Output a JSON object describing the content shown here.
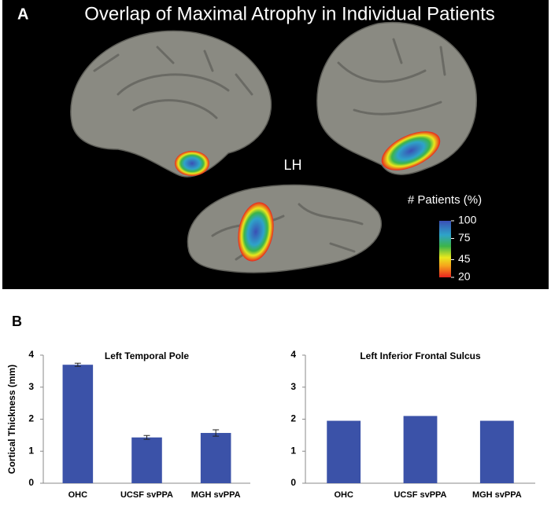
{
  "panel_a": {
    "label": "A",
    "title": "Overlap of Maximal Atrophy in Individual Patients",
    "hemisphere": "LH",
    "colorbar": {
      "title": "# Patients (%)",
      "range": [
        20,
        100
      ],
      "ticks": [
        100,
        75,
        45,
        20
      ]
    }
  },
  "panel_b_label": "B",
  "chart_data": [
    {
      "type": "bar",
      "title": "Left Temporal Pole",
      "ylabel": "Cortical Thickness (mm)",
      "categories": [
        "OHC",
        "UCSF svPPA",
        "MGH svPPA"
      ],
      "values": [
        3.7,
        1.43,
        1.57
      ],
      "errors": [
        0.05,
        0.06,
        0.1
      ],
      "color": "#3b52a8",
      "ylim": [
        0,
        4
      ],
      "yticks": [
        0,
        1,
        2,
        3,
        4
      ]
    },
    {
      "type": "bar",
      "title": "Left Inferior Frontal Sulcus",
      "categories": [
        "OHC",
        "UCSF svPPA",
        "MGH svPPA"
      ],
      "values": [
        1.95,
        2.1,
        1.95
      ],
      "color": "#3b52a8",
      "ylim": [
        0,
        4
      ],
      "yticks": [
        0,
        1,
        2,
        3,
        4
      ]
    }
  ]
}
